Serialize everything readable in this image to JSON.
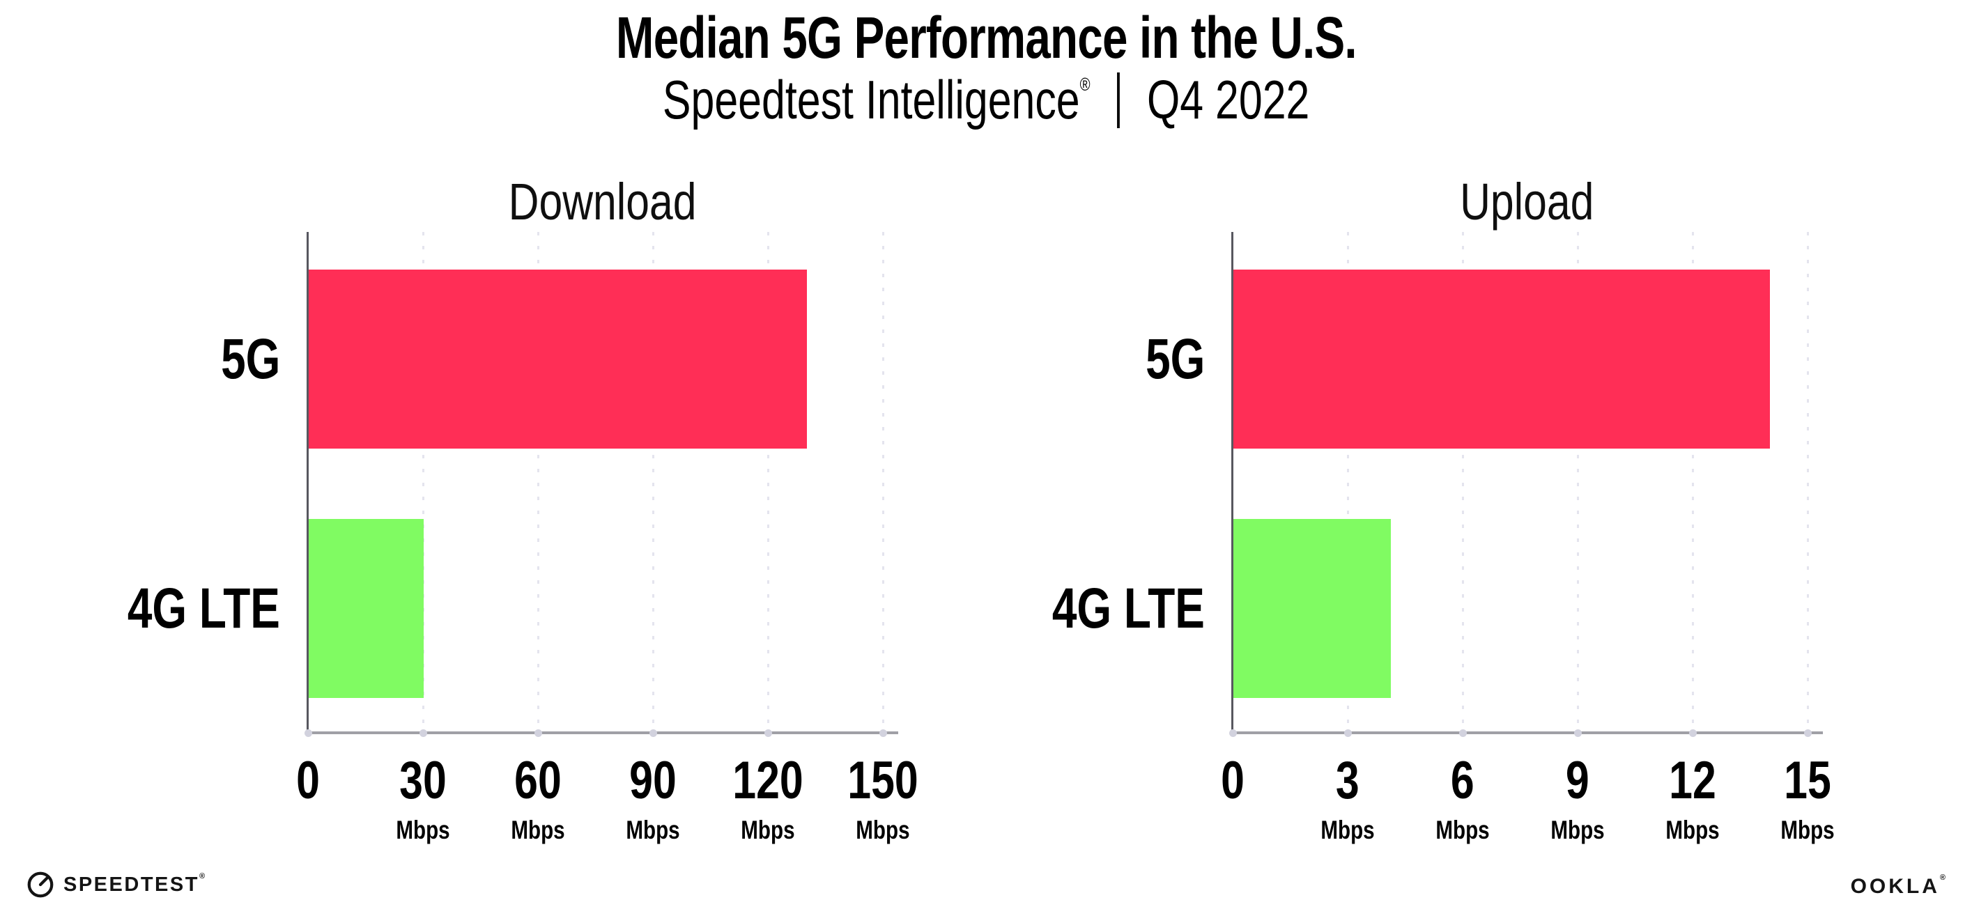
{
  "header": {
    "title": "Median 5G Performance in the U.S.",
    "subtitle_brand": "Speedtest Intelligence",
    "registered_mark": "®",
    "subtitle_period": "Q4 2022"
  },
  "chart_data": [
    {
      "type": "bar",
      "orientation": "horizontal",
      "title": "Download",
      "categories": [
        "5G",
        "4G LTE"
      ],
      "values": [
        130,
        30
      ],
      "unit": "Mbps",
      "xlim": [
        0,
        150
      ],
      "xticks": [
        0,
        30,
        60,
        90,
        120,
        150
      ],
      "grid": "vertical-dotted",
      "legend": "none",
      "bar_colors": [
        "#FF2E56",
        "#80FB62"
      ]
    },
    {
      "type": "bar",
      "orientation": "horizontal",
      "title": "Upload",
      "categories": [
        "5G",
        "4G LTE"
      ],
      "values": [
        14,
        4.1
      ],
      "unit": "Mbps",
      "xlim": [
        0,
        15
      ],
      "xticks": [
        0,
        3,
        6,
        9,
        12,
        15
      ],
      "grid": "vertical-dotted",
      "legend": "none",
      "bar_colors": [
        "#FF2E56",
        "#80FB62"
      ]
    }
  ],
  "footer": {
    "speedtest_wordmark": "SPEEDTEST",
    "speedtest_mark": "®",
    "ookla_wordmark": "OOKLA",
    "ookla_mark": "®"
  },
  "colors": {
    "bar_5g": "#FF2E56",
    "bar_4g_lte": "#80FB62",
    "gridline": "#E4E4EE",
    "x_axis": "#A0A0A6",
    "y_axis": "#57575F",
    "axis_dot": "#D2D2DE",
    "text": "#000000"
  }
}
